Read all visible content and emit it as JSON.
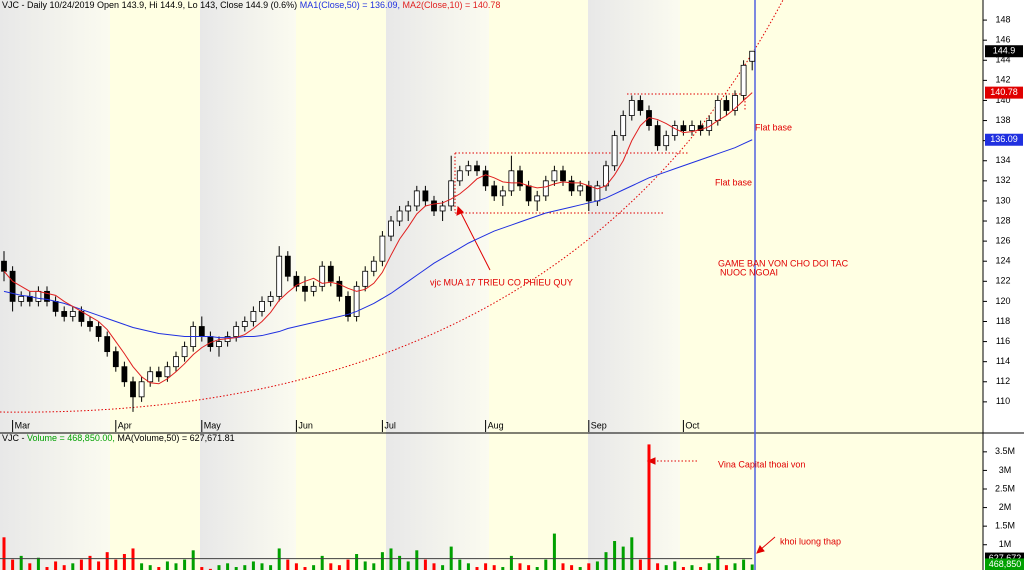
{
  "chart_data": [
    {
      "type": "candlestick",
      "title": "VJC - Daily 10/24/2019 Open 143.9, Hi 144.9, Lo 143, Close 144.9 (0.6%)",
      "categories": [
        null,
        "Mar",
        null,
        null,
        null,
        null,
        null,
        null,
        null,
        null,
        null,
        null,
        null,
        "Apr",
        null,
        null,
        null,
        null,
        null,
        null,
        null,
        null,
        null,
        "May",
        null,
        null,
        null,
        null,
        null,
        null,
        null,
        null,
        null,
        null,
        "Jun",
        null,
        null,
        null,
        null,
        null,
        null,
        null,
        null,
        null,
        "Jul",
        null,
        null,
        null,
        null,
        null,
        null,
        null,
        null,
        null,
        null,
        null,
        "Aug",
        null,
        null,
        null,
        null,
        null,
        null,
        null,
        null,
        null,
        null,
        null,
        "Sep",
        null,
        null,
        null,
        null,
        null,
        null,
        null,
        null,
        null,
        null,
        "Oct",
        null,
        null,
        null,
        null,
        null,
        null,
        null,
        null
      ],
      "open": [
        124,
        123,
        120,
        120.5,
        120,
        121,
        120,
        119,
        118.5,
        119,
        118,
        117.5,
        116.5,
        115,
        113.5,
        112,
        110.5,
        112,
        113,
        112.5,
        113.5,
        114.5,
        115.5,
        117.5,
        116.5,
        115.5,
        116,
        116.5,
        117.5,
        118,
        119,
        120,
        120.5,
        124.5,
        122.5,
        121.5,
        121,
        121.5,
        123.5,
        122,
        120.5,
        118.5,
        121.5,
        123,
        124,
        126.5,
        128,
        129,
        129.5,
        131,
        130,
        129,
        129.5,
        132,
        133,
        133.5,
        133,
        131.5,
        130.5,
        131,
        133,
        131.5,
        130,
        130.5,
        132,
        133,
        132,
        131,
        131.5,
        130,
        131.5,
        133.5,
        136.5,
        138.5,
        140,
        139,
        137.5,
        135.5,
        136.5,
        137.5,
        137,
        137.5,
        137,
        138,
        140,
        139,
        140.5,
        143.9
      ],
      "high": [
        125,
        123.5,
        121,
        121,
        121.5,
        121.5,
        120.5,
        119.5,
        119.5,
        119.5,
        118.5,
        118,
        117,
        115.5,
        114,
        112.5,
        112.5,
        113.5,
        113.5,
        114,
        115,
        116,
        118,
        118.5,
        117,
        116.5,
        117,
        118,
        118.5,
        119.5,
        120.5,
        121,
        125.5,
        125,
        123,
        122.5,
        122,
        124,
        124,
        122.5,
        121,
        122,
        123.5,
        124.5,
        127,
        128.5,
        129.5,
        130,
        131.5,
        131.5,
        130.5,
        130,
        134.5,
        133.5,
        134,
        134,
        133.5,
        132,
        131.5,
        134.5,
        133.5,
        132,
        131,
        132.5,
        133.5,
        133.5,
        132.5,
        132,
        132,
        132,
        134,
        137,
        139,
        140.5,
        140.5,
        139.5,
        138,
        137,
        138,
        138,
        138,
        138,
        138.5,
        140.5,
        140.5,
        141,
        144,
        144.9
      ],
      "low": [
        122,
        119,
        119.5,
        119.5,
        119.5,
        119.5,
        118.5,
        118,
        118,
        117.5,
        117,
        116,
        114.5,
        113,
        111.5,
        109,
        110,
        111.5,
        112,
        112,
        113,
        114,
        115,
        116,
        115,
        114.5,
        115.5,
        116,
        117,
        117.5,
        118.5,
        119.5,
        120,
        122,
        121,
        120,
        120.5,
        121,
        121.5,
        120,
        118,
        118,
        121,
        122.5,
        123.5,
        126,
        127.5,
        128,
        129,
        129.5,
        128.5,
        128,
        129,
        131.5,
        132.5,
        132.5,
        131,
        130,
        129.5,
        130.5,
        131,
        129.5,
        129,
        130,
        131.5,
        131.5,
        130.5,
        130.5,
        129,
        129.5,
        131,
        133,
        136,
        138,
        138.5,
        137,
        135,
        135,
        136,
        136.5,
        136.5,
        136.5,
        136.5,
        137.5,
        138.5,
        138.5,
        140,
        143
      ],
      "close": [
        123,
        120,
        120.5,
        120,
        121,
        120,
        119,
        118.5,
        119,
        118,
        117.5,
        116.5,
        115,
        113.5,
        112,
        110.5,
        112,
        113,
        112.5,
        113.5,
        114.5,
        115.5,
        117.5,
        116.5,
        115.5,
        116,
        116.5,
        117.5,
        118,
        119,
        120,
        120.5,
        124.5,
        122.5,
        121.5,
        121,
        121.5,
        123.5,
        122,
        120.5,
        118.5,
        121.5,
        123,
        124,
        126.5,
        128,
        129,
        129.5,
        131,
        130,
        129,
        129.5,
        132,
        133,
        133.5,
        133,
        131.5,
        130.5,
        131,
        133,
        131.5,
        130,
        130.5,
        132,
        133,
        132,
        131,
        131.5,
        130,
        131.5,
        133.5,
        136.5,
        138.5,
        140,
        139,
        137.5,
        135.5,
        136.5,
        137.5,
        137,
        137.5,
        137,
        138,
        140,
        139,
        140.5,
        143.5,
        144.9
      ],
      "up_color": "#ffffff",
      "down_color": "#000000",
      "lines": [
        {
          "name": "MA1(Close,50) = 136.09,",
          "color": "#2030e0",
          "values": [
            121,
            120.8,
            120.6,
            120.5,
            120.3,
            120.2,
            120,
            119.8,
            119.5,
            119.2,
            118.9,
            118.6,
            118.3,
            118,
            117.7,
            117.4,
            117.2,
            117,
            116.8,
            116.7,
            116.6,
            116.5,
            116.5,
            116.5,
            116.5,
            116.4,
            116.4,
            116.4,
            116.5,
            116.5,
            116.6,
            116.8,
            117,
            117.3,
            117.5,
            117.7,
            117.9,
            118.1,
            118.3,
            118.5,
            118.7,
            119,
            119.4,
            119.8,
            120.3,
            120.8,
            121.4,
            122,
            122.6,
            123.2,
            123.8,
            124.3,
            124.8,
            125.3,
            125.8,
            126.2,
            126.6,
            127,
            127.3,
            127.6,
            127.9,
            128.2,
            128.5,
            128.8,
            129,
            129.2,
            129.4,
            129.6,
            129.8,
            130,
            130.3,
            130.7,
            131.1,
            131.5,
            131.9,
            132.3,
            132.6,
            132.9,
            133.2,
            133.5,
            133.8,
            134.1,
            134.4,
            134.7,
            135,
            135.3,
            135.7,
            136.09
          ]
        },
        {
          "name": "MA2(Close,10) = 140.78",
          "color": "#e02020",
          "values": [
            123,
            122,
            121.5,
            121,
            121,
            120.8,
            120.6,
            120,
            119.5,
            119,
            118.5,
            118,
            117.2,
            116,
            114.8,
            113.5,
            112.5,
            111.9,
            111.8,
            112.3,
            113,
            113.8,
            114.7,
            115.4,
            115.9,
            116.2,
            116.3,
            116.4,
            116.7,
            117.3,
            118,
            118.9,
            120.1,
            120.9,
            121.6,
            122,
            122.3,
            121.8,
            121.9,
            121.7,
            121.3,
            121,
            121.2,
            121.8,
            122.9,
            124.6,
            126.2,
            127.4,
            128.7,
            129.5,
            129.7,
            129.8,
            130.2,
            130.7,
            131.4,
            132.2,
            132.6,
            132.3,
            131.9,
            131.8,
            131.8,
            131.5,
            131.3,
            131.4,
            131.7,
            131.9,
            131.8,
            131.8,
            131.5,
            131.2,
            131.5,
            132.6,
            134,
            136,
            137.5,
            138.3,
            138.1,
            137.7,
            137.2,
            136.8,
            136.9,
            137.1,
            137.4,
            138,
            138.5,
            139.2,
            140,
            140.78
          ]
        }
      ],
      "ylim": [
        107,
        150
      ],
      "yticks": [
        110,
        112,
        114,
        116,
        118,
        120,
        122,
        124,
        126,
        128,
        130,
        132,
        134,
        136,
        138,
        140,
        142,
        144,
        146,
        148
      ],
      "price_tags": [
        {
          "value": 144.9,
          "color": "#000000"
        },
        {
          "value": 140.78,
          "color": "#e00000"
        },
        {
          "value": 136.09,
          "color": "#2030e0"
        }
      ],
      "annotations": {
        "flat_base_1": "Flat base",
        "flat_base_2": "Flat base",
        "buyback": "vjc MUA 17 TRIEU CO PHIEU QUY",
        "sale_1": "GAME BAN VON CHO DOI TAC",
        "sale_2": "NUOC NGOAI"
      }
    },
    {
      "type": "bar",
      "title": "VJC - ",
      "volume_label": "Volume = 468,850.00,",
      "ma_label": "MA(Volume,50) = 627,671.81",
      "values": [
        1200000,
        600000,
        700000,
        500000,
        650000,
        400000,
        550000,
        450000,
        500000,
        600000,
        700000,
        550000,
        800000,
        600000,
        750000,
        900000,
        500000,
        450000,
        400000,
        550000,
        500000,
        600000,
        850000,
        400000,
        350000,
        450000,
        500000,
        400000,
        450000,
        550000,
        500000,
        450000,
        900000,
        600000,
        500000,
        400000,
        450000,
        700000,
        500000,
        450000,
        600000,
        750000,
        550000,
        500000,
        800000,
        900000,
        700000,
        550000,
        850000,
        600000,
        500000,
        450000,
        950000,
        600000,
        500000,
        400000,
        500000,
        450000,
        400000,
        700000,
        500000,
        450000,
        400000,
        600000,
        1300000,
        500000,
        450000,
        400000,
        500000,
        550000,
        800000,
        1100000,
        950000,
        1200000,
        600000,
        3700000,
        500000,
        450000,
        550000,
        400000,
        450000,
        400000,
        500000,
        700000,
        450000,
        500000,
        600000,
        468850
      ],
      "up_color": "#00a000",
      "down_color": "#ff0000",
      "ylim": [
        320000,
        3980000
      ],
      "yticks": [
        {
          "value": 1000000,
          "label": "1M"
        },
        {
          "value": 1500000,
          "label": "1.5M"
        },
        {
          "value": 2000000,
          "label": "2M"
        },
        {
          "value": 2500000,
          "label": "2.5M"
        },
        {
          "value": 3000000,
          "label": "3M"
        },
        {
          "value": 3500000,
          "label": "3.5M"
        }
      ],
      "ma_value": 627672,
      "tags": [
        {
          "value": 627672,
          "label": "627,672",
          "color": "#000000"
        },
        {
          "value": 468850,
          "label": "468,850",
          "color": "#00a000"
        }
      ],
      "annotations": {
        "vina": "Vina Capital thoai von",
        "low_volume": "khoi luong thap"
      }
    }
  ]
}
